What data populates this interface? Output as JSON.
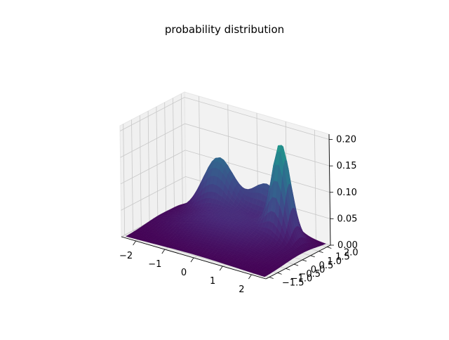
{
  "chart_data": {
    "type": "surface3d",
    "title": "probability distribution",
    "xlabel": "",
    "ylabel": "",
    "zlabel": "",
    "colormap": "viridis",
    "grid": true,
    "xlim": [
      -2.5,
      2.5
    ],
    "ylim": [
      -1.7,
      2.2
    ],
    "zlim": [
      0.0,
      0.21
    ],
    "x_ticks": [
      "−2",
      "−1",
      "0",
      "1",
      "2"
    ],
    "y_ticks": [
      "−1.5",
      "−1.0",
      "−0.5",
      "0.0",
      "0.5",
      "1.0",
      "1.5",
      "2.0"
    ],
    "z_ticks": [
      "0.00",
      "0.05",
      "0.10",
      "0.15",
      "0.20"
    ],
    "x_tick_values": [
      -2,
      -1,
      0,
      1,
      2
    ],
    "y_tick_values": [
      -1.5,
      -1.0,
      -0.5,
      0.0,
      0.5,
      1.0,
      1.5,
      2.0
    ],
    "z_tick_values": [
      0.0,
      0.05,
      0.1,
      0.15,
      0.2
    ],
    "surface_components": [
      {
        "mean_x": 1.4,
        "mean_y": 1.2,
        "sigma_x": 0.28,
        "sigma_y": 0.3,
        "peak": 0.17
      },
      {
        "mean_x": -1.0,
        "mean_y": 1.6,
        "sigma_x": 0.5,
        "sigma_y": 0.35,
        "peak": 0.1
      },
      {
        "mean_x": 0.5,
        "mean_y": 1.9,
        "sigma_x": 0.5,
        "sigma_y": 0.3,
        "peak": 0.07
      },
      {
        "mean_x": 0.0,
        "mean_y": 0.6,
        "sigma_x": 1.3,
        "sigma_y": 1.0,
        "peak": 0.045
      }
    ],
    "grid_range_x": [
      -2.4,
      2.4
    ],
    "grid_range_y": [
      -1.6,
      2.1
    ],
    "grid_resolution": 40
  }
}
